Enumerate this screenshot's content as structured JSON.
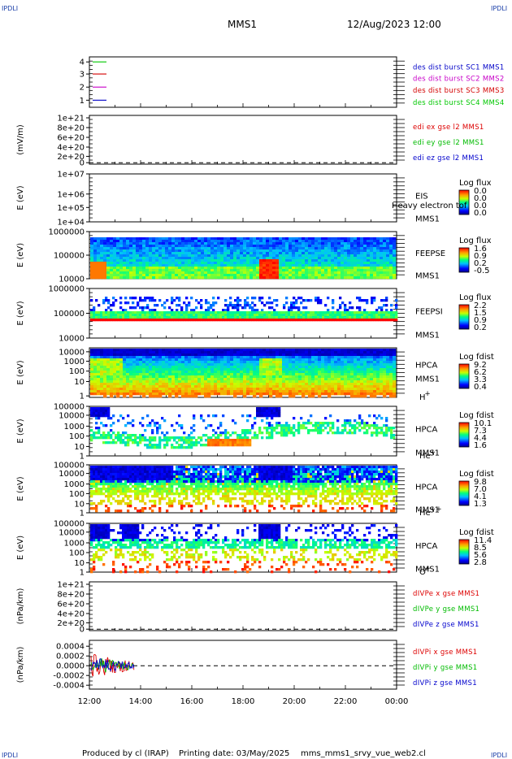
{
  "header": {
    "corner_label": "IPDLI",
    "mission": "MMS1",
    "datetime": "12/Aug/2023 12:00"
  },
  "footer": {
    "produced": "Produced by cl (IRAP)",
    "printing": "Printing date: 03/May/2025",
    "file": "mms_mms1_srvy_vue_web2.cl"
  },
  "time_axis": {
    "ticks": [
      "12:00",
      "14:00",
      "16:00",
      "18:00",
      "20:00",
      "22:00",
      "00:00"
    ],
    "range_hours": [
      0,
      12
    ]
  },
  "colors": {
    "c1": "#0000c8",
    "c2": "#c800c8",
    "c3": "#d40000",
    "c4": "#00c800",
    "red": "#dd0000",
    "green": "#00bb00",
    "blue": "#0000cc"
  },
  "panels": {
    "p1": {
      "yticks": [
        "4",
        "3",
        "2",
        "1"
      ],
      "legend": [
        "des dist burst SC1 MMS1",
        "des dist burst SC2 MMS2",
        "des dist burst SC3 MMS3",
        "des dist burst SC4 MMS4"
      ]
    },
    "p2": {
      "ylabel": "(mV/m)",
      "yticks": [
        "1e+21",
        "8e+20",
        "6e+20",
        "4e+20",
        "2e+20",
        "0"
      ],
      "legend": [
        "edi ex gse l2 MMS1",
        "edi ey gse l2 MMS1",
        "edi ez gse l2 MMS1"
      ]
    },
    "p3": {
      "ylabel": "E (eV)",
      "yticks": [
        "1e+07",
        "1e+06",
        "1e+05",
        "1e+04"
      ],
      "inst": "EIS",
      "overlay": "Heavy electron tof",
      "sc": "MMS1",
      "cb_title": "Log flux",
      "cb_ticks": [
        "0.0",
        "0.0",
        "0.0",
        "0.0"
      ]
    },
    "p4": {
      "ylabel": "E (eV)",
      "yticks": [
        "1000000",
        "100000",
        "10000"
      ],
      "inst": "FEEPSE",
      "sc": "MMS1",
      "cb_title": "Log flux",
      "cb_ticks": [
        "1.6",
        "0.9",
        "0.2",
        "-0.5"
      ]
    },
    "p5": {
      "ylabel": "E (eV)",
      "yticks": [
        "1000000",
        "100000",
        "10000"
      ],
      "inst": "FEEPSI",
      "sc": "MMS1",
      "cb_title": "Log flux",
      "cb_ticks": [
        "2.2",
        "1.5",
        "0.9",
        "0.2"
      ]
    },
    "p6": {
      "ylabel": "E (eV)",
      "yticks": [
        "10000",
        "1000",
        "100",
        "10",
        "1"
      ],
      "inst": "HPCA",
      "sc": "MMS1",
      "species": "H",
      "charge": "+",
      "cb_title": "Log fdist",
      "cb_ticks": [
        "9.2",
        "6.2",
        "3.3",
        "0.4"
      ]
    },
    "p7": {
      "ylabel": "E (eV)",
      "yticks": [
        "100000",
        "10000",
        "1000",
        "100",
        "10",
        "1"
      ],
      "inst": "HPCA",
      "sc": "MMS1",
      "species": "He",
      "charge": "+",
      "cb_title": "Log fdist",
      "cb_ticks": [
        "10.1",
        "7.3",
        "4.4",
        "1.6"
      ]
    },
    "p8": {
      "ylabel": "E (eV)",
      "yticks": [
        "100000",
        "10000",
        "1000",
        "100",
        "10",
        "1"
      ],
      "inst": "HPCA",
      "sc": "MMS1",
      "species": "He",
      "charge": "++",
      "cb_title": "Log fdist",
      "cb_ticks": [
        "9.8",
        "7.0",
        "4.1",
        "1.3"
      ]
    },
    "p9": {
      "ylabel": "E (eV)",
      "yticks": [
        "100000",
        "10000",
        "1000",
        "100",
        "10",
        "1"
      ],
      "inst": "HPCA",
      "sc": "MMS1",
      "species": "O",
      "charge": "+",
      "cb_title": "Log fdist",
      "cb_ticks": [
        "11.4",
        "8.5",
        "5.6",
        "2.8"
      ]
    },
    "p10": {
      "ylabel": "(nPa/km)",
      "yticks": [
        "1e+21",
        "8e+20",
        "6e+20",
        "4e+20",
        "2e+20",
        "0"
      ],
      "legend": [
        "dIVPe x gse MMS1",
        "dIVPe y gse MMS1",
        "dIVPe z gse MMS1"
      ]
    },
    "p11": {
      "ylabel": "(nPa/km)",
      "yticks": [
        "0.0004",
        "0.0002",
        "0.0000",
        "-0.0002",
        "-0.0004"
      ],
      "legend": [
        "dIVPi x gse MMS1",
        "dIVPi y gse MMS1",
        "dIVPi z gse MMS1"
      ]
    }
  },
  "chart_data": [
    {
      "type": "line",
      "ylabel": "",
      "ylim": [
        0.5,
        4.5
      ],
      "series": [
        {
          "name": "des dist burst SC1 MMS1",
          "x": [
            "12:00",
            "12:45"
          ],
          "y": [
            1,
            1
          ]
        },
        {
          "name": "des dist burst SC2 MMS2",
          "x": [
            "12:00",
            "12:45"
          ],
          "y": [
            2,
            2
          ]
        },
        {
          "name": "des dist burst SC3 MMS3",
          "x": [
            "12:00",
            "12:45"
          ],
          "y": [
            3,
            3
          ]
        },
        {
          "name": "des dist burst SC4 MMS4",
          "x": [
            "12:00",
            "12:45"
          ],
          "y": [
            4,
            4
          ]
        }
      ]
    },
    {
      "type": "line",
      "ylabel": "(mV/m)",
      "ylim": [
        -1e+20,
        1.05e+21
      ],
      "zero_line": true,
      "series": [
        {
          "name": "edi ex gse l2 MMS1",
          "values": []
        },
        {
          "name": "edi ey gse l2 MMS1",
          "values": []
        },
        {
          "name": "edi ez gse l2 MMS1",
          "values": []
        }
      ]
    },
    {
      "type": "heatmap",
      "instrument": "EIS",
      "ylabel": "E (eV)",
      "ylim": [
        10000.0,
        10000000.0
      ],
      "log_y": true,
      "colorbar": "Log flux",
      "values": []
    },
    {
      "type": "heatmap",
      "instrument": "FEEPSE",
      "ylabel": "E (eV)",
      "ylim": [
        10000.0,
        1000000.0
      ],
      "log_y": true,
      "colorbar": "Log flux",
      "crange": [
        -0.5,
        1.6
      ]
    },
    {
      "type": "heatmap",
      "instrument": "FEEPSI",
      "ylabel": "E (eV)",
      "ylim": [
        10000.0,
        1000000.0
      ],
      "log_y": true,
      "colorbar": "Log flux",
      "crange": [
        0.2,
        2.2
      ]
    },
    {
      "type": "heatmap",
      "instrument": "HPCA H+",
      "ylabel": "E (eV)",
      "ylim": [
        1,
        20000.0
      ],
      "log_y": true,
      "colorbar": "Log fdist",
      "crange": [
        0.4,
        9.2
      ]
    },
    {
      "type": "heatmap",
      "instrument": "HPCA He+",
      "ylabel": "E (eV)",
      "ylim": [
        1,
        100000.0
      ],
      "log_y": true,
      "colorbar": "Log fdist",
      "crange": [
        1.6,
        10.1
      ]
    },
    {
      "type": "heatmap",
      "instrument": "HPCA He++",
      "ylabel": "E (eV)",
      "ylim": [
        1,
        100000.0
      ],
      "log_y": true,
      "colorbar": "Log fdist",
      "crange": [
        1.3,
        9.8
      ]
    },
    {
      "type": "heatmap",
      "instrument": "HPCA O+",
      "ylabel": "E (eV)",
      "ylim": [
        1,
        100000.0
      ],
      "log_y": true,
      "colorbar": "Log fdist",
      "crange": [
        2.8,
        11.4
      ]
    },
    {
      "type": "line",
      "ylabel": "(nPa/km)",
      "ylim": [
        -1e+20,
        1.05e+21
      ],
      "zero_line": true,
      "series": [
        {
          "name": "dIVPe x gse MMS1",
          "values": []
        },
        {
          "name": "dIVPe y gse MMS1",
          "values": []
        },
        {
          "name": "dIVPe z gse MMS1",
          "values": []
        }
      ]
    },
    {
      "type": "line",
      "ylabel": "(nPa/km)",
      "ylim": [
        -0.0005,
        0.0005
      ],
      "zero_line": true,
      "x_range": [
        "12:00",
        "13:45"
      ],
      "amplitude": 0.0004,
      "series": [
        {
          "name": "dIVPi x gse MMS1"
        },
        {
          "name": "dIVPi y gse MMS1"
        },
        {
          "name": "dIVPi z gse MMS1"
        }
      ]
    }
  ]
}
